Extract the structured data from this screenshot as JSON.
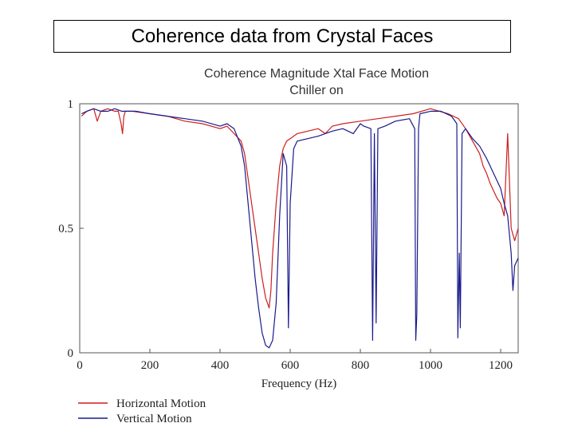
{
  "slide": {
    "title": "Coherence data from Crystal Faces"
  },
  "chart_data": {
    "type": "line",
    "title": "Coherence Magnitude Xtal Face Motion",
    "subtitle": "Chiller on",
    "xlabel": "Frequency (Hz)",
    "ylabel": "",
    "xlim": [
      0,
      1250
    ],
    "ylim": [
      0,
      1
    ],
    "xticks": [
      0,
      200,
      400,
      600,
      800,
      1000,
      1200
    ],
    "yticks": [
      0,
      0.5,
      1
    ],
    "ytick_labels": [
      "0",
      "0.5",
      "1"
    ],
    "grid": false,
    "legend_position": "bottom-left",
    "colors": {
      "Horizontal Motion": "#cc1f1f",
      "Vertical Motion": "#1a1a8c"
    },
    "series": [
      {
        "name": "Horizontal Motion",
        "x": [
          5,
          20,
          40,
          50,
          60,
          80,
          100,
          110,
          118,
          122,
          126,
          130,
          150,
          200,
          250,
          300,
          350,
          400,
          420,
          440,
          460,
          470,
          480,
          490,
          500,
          510,
          520,
          530,
          540,
          545,
          550,
          560,
          570,
          580,
          590,
          600,
          620,
          650,
          680,
          700,
          720,
          750,
          800,
          850,
          900,
          950,
          1000,
          1050,
          1080,
          1100,
          1120,
          1140,
          1150,
          1160,
          1170,
          1180,
          1190,
          1200,
          1210,
          1220,
          1230,
          1240,
          1250
        ],
        "y": [
          0.95,
          0.97,
          0.98,
          0.93,
          0.97,
          0.98,
          0.97,
          0.97,
          0.92,
          0.88,
          0.95,
          0.97,
          0.97,
          0.96,
          0.95,
          0.93,
          0.92,
          0.9,
          0.91,
          0.88,
          0.85,
          0.8,
          0.7,
          0.6,
          0.5,
          0.4,
          0.3,
          0.22,
          0.18,
          0.25,
          0.4,
          0.6,
          0.75,
          0.82,
          0.85,
          0.86,
          0.88,
          0.89,
          0.9,
          0.88,
          0.91,
          0.92,
          0.93,
          0.94,
          0.95,
          0.96,
          0.98,
          0.96,
          0.94,
          0.9,
          0.85,
          0.8,
          0.75,
          0.72,
          0.68,
          0.65,
          0.62,
          0.6,
          0.55,
          0.88,
          0.5,
          0.45,
          0.5
        ]
      },
      {
        "name": "Vertical Motion",
        "x": [
          5,
          20,
          40,
          60,
          80,
          100,
          120,
          140,
          160,
          200,
          250,
          300,
          350,
          400,
          420,
          440,
          460,
          470,
          480,
          490,
          500,
          510,
          520,
          530,
          540,
          550,
          560,
          570,
          580,
          590,
          595,
          600,
          610,
          620,
          650,
          680,
          700,
          720,
          750,
          780,
          800,
          810,
          830,
          835,
          840,
          845,
          850,
          870,
          900,
          940,
          955,
          958,
          961,
          966,
          970,
          1000,
          1030,
          1060,
          1075,
          1078,
          1082,
          1085,
          1090,
          1100,
          1120,
          1140,
          1160,
          1180,
          1200,
          1210,
          1220,
          1230,
          1235,
          1240,
          1250
        ],
        "y": [
          0.96,
          0.97,
          0.98,
          0.97,
          0.97,
          0.98,
          0.97,
          0.97,
          0.97,
          0.96,
          0.95,
          0.94,
          0.93,
          0.91,
          0.92,
          0.9,
          0.83,
          0.75,
          0.6,
          0.45,
          0.3,
          0.18,
          0.08,
          0.03,
          0.02,
          0.05,
          0.2,
          0.55,
          0.8,
          0.75,
          0.1,
          0.6,
          0.82,
          0.85,
          0.86,
          0.87,
          0.88,
          0.89,
          0.9,
          0.88,
          0.92,
          0.91,
          0.9,
          0.05,
          0.88,
          0.12,
          0.9,
          0.91,
          0.93,
          0.94,
          0.9,
          0.05,
          0.15,
          0.9,
          0.96,
          0.97,
          0.97,
          0.95,
          0.92,
          0.06,
          0.4,
          0.1,
          0.88,
          0.9,
          0.86,
          0.83,
          0.78,
          0.72,
          0.66,
          0.6,
          0.55,
          0.4,
          0.25,
          0.35,
          0.38
        ]
      }
    ]
  }
}
